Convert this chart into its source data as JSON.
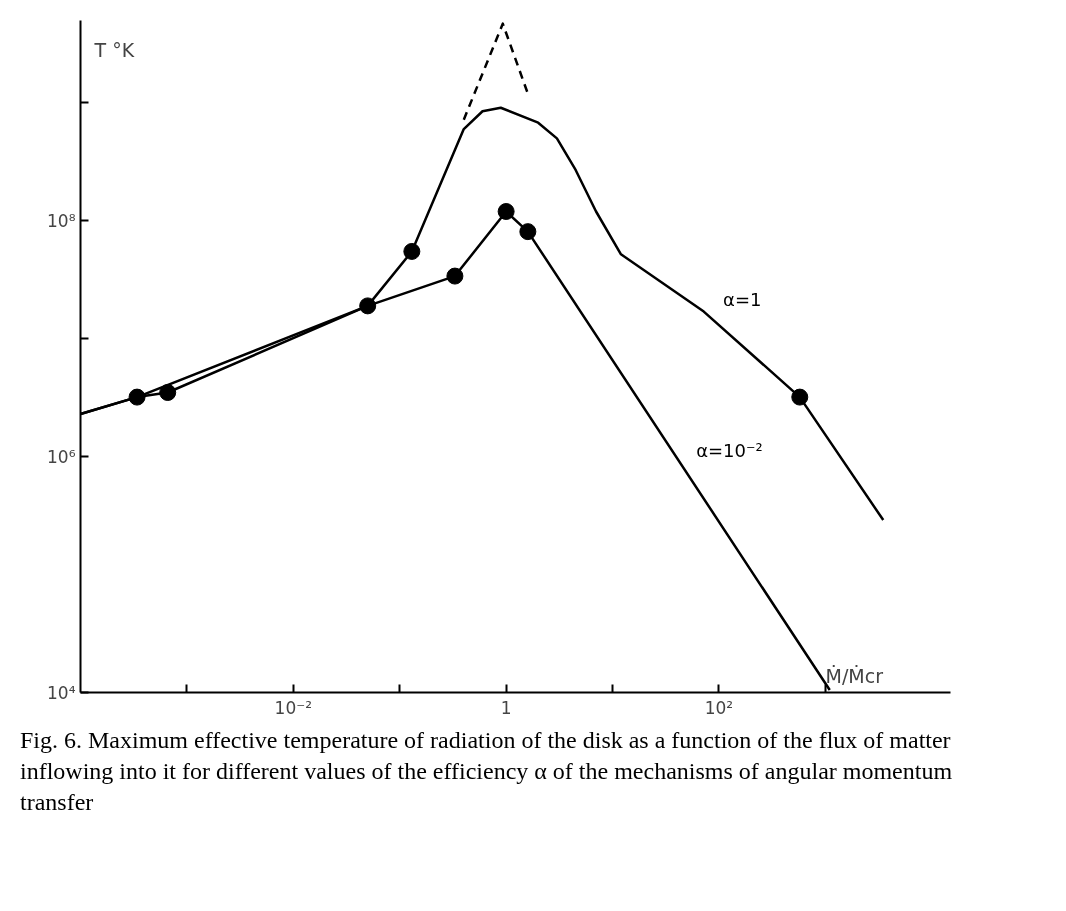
{
  "chart_data": {
    "type": "line",
    "ylabel": "T °K",
    "xlabel": "Ṁ/Ṁcr",
    "log": "xy",
    "grid": false,
    "xlim": [
      0.0001,
      15000
    ],
    "ylim": [
      10000,
      5000000000
    ],
    "xticks": [
      {
        "value": 0.001,
        "label": null
      },
      {
        "value": 0.01,
        "label": "10⁻²"
      },
      {
        "value": 0.1,
        "label": null
      },
      {
        "value": 1,
        "label": "1"
      },
      {
        "value": 10,
        "label": null
      },
      {
        "value": 100,
        "label": "10²"
      },
      {
        "value": 1000,
        "label": null
      }
    ],
    "yticks": [
      {
        "value": 10000,
        "label": "10⁴"
      },
      {
        "value": 1000000,
        "label": "10⁶"
      },
      {
        "value": 10000000,
        "label": null
      },
      {
        "value": 100000000,
        "label": "10⁸"
      },
      {
        "value": 1000000000,
        "label": null
      }
    ],
    "series": [
      {
        "name": "α=1",
        "color": "#000000",
        "line_style": "solid",
        "marker": "none",
        "x": [
          0.0001,
          0.00034,
          0.00066,
          0.05,
          0.13,
          0.4,
          0.6,
          0.89,
          2.0,
          3,
          4.5,
          7,
          12,
          72,
          575,
          3500
        ],
        "values": [
          2300000,
          3200000,
          3500000,
          19000000,
          55000000,
          600000000,
          850000000,
          910000000,
          680000000,
          500000000,
          270000000,
          120000000,
          52000000,
          17000000,
          3200000,
          290000
        ]
      },
      {
        "name": "α=10⁻²",
        "color": "#000000",
        "line_style": "solid",
        "marker": "none",
        "x": [
          0.0001,
          0.00034,
          0.05,
          0.33,
          1.0,
          1.6,
          1100
        ],
        "values": [
          2300000,
          3200000,
          19000000,
          34000000,
          120000000,
          81000000,
          10500
        ]
      },
      {
        "color": "#000000",
        "line_style": "dashed",
        "marker": "none",
        "x": [
          0.4,
          0.93,
          1.6
        ],
        "values": [
          720000000,
          4700000000,
          1200000000
        ]
      },
      {
        "type": "scatter",
        "color": "#000000",
        "marker": "circle",
        "x": [
          0.00034,
          0.00066,
          0.05,
          0.13,
          0.33,
          1.0,
          1.6,
          575
        ],
        "values": [
          3200000,
          3500000,
          19000000,
          55000000,
          34000000,
          120000000,
          81000000,
          3200000
        ]
      }
    ],
    "annotations": [
      "Fig. 6. Maximum effective temperature of radiation of the disk as a function of the flux of matter inflowing into it for different values of the efficiency α of the mechanisms of angular momentum transfer"
    ]
  }
}
